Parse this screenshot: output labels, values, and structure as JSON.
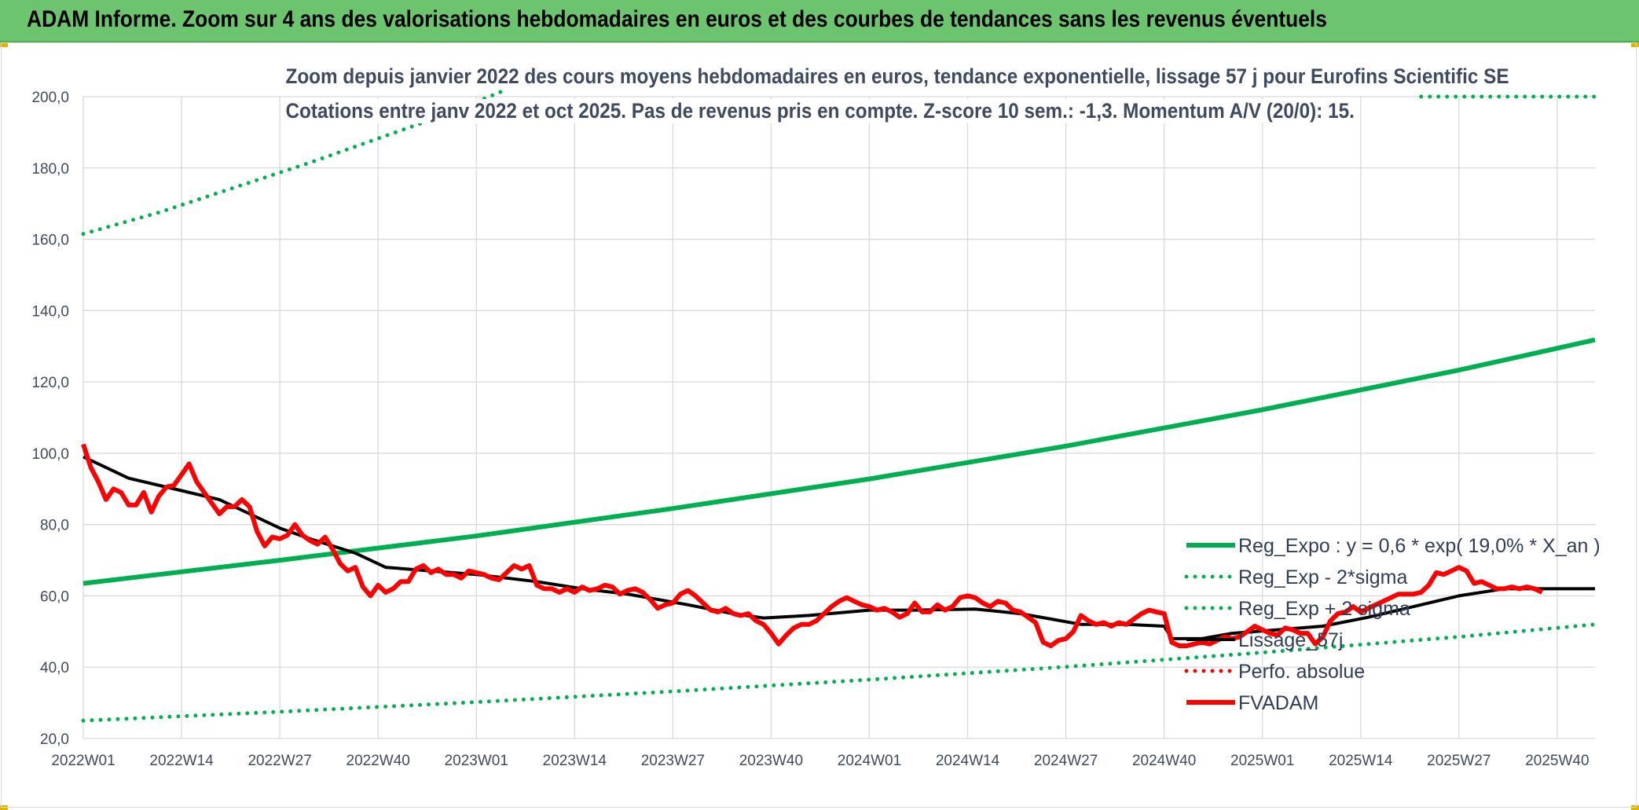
{
  "header": {
    "title": "ADAM Informe. Zoom sur 4 ans des valorisations hebdomadaires en euros et des courbes de tendances sans les revenus éventuels"
  },
  "chart_data": {
    "type": "line",
    "title": "Zoom depuis janvier 2022 des cours moyens hebdomadaires en euros, tendance exponentielle, lissage 57 j pour Eurofins Scientific SE",
    "subtitle": "Cotations entre janv 2022 et oct 2025. Pas de revenus pris en compte. Z-score 10 sem.: -1,3. Momentum A/V (20/0): 15.",
    "xlabel": "",
    "ylabel": "",
    "ylim": [
      20,
      200
    ],
    "ytick_step": 20,
    "yticks": [
      "20,0",
      "40,0",
      "60,0",
      "80,0",
      "100,0",
      "120,0",
      "140,0",
      "160,0",
      "180,0",
      "200,0"
    ],
    "xticks": [
      "2022W01",
      "2022W14",
      "2022W27",
      "2022W40",
      "2023W01",
      "2023W14",
      "2023W27",
      "2023W40",
      "2024W01",
      "2024W14",
      "2024W27",
      "2024W40",
      "2025W01",
      "2025W14",
      "2025W27",
      "2025W40"
    ],
    "xtick_spacing_weeks": 13,
    "n_weeks": 201,
    "grid": true,
    "legend_position": "bottom-right",
    "series": [
      {
        "name": "Reg_Expo : y = 0,6 * exp( 19,0% *  X_an )",
        "style": "solid",
        "color": "#00b050",
        "anchors": [
          [
            0,
            63.5
          ],
          [
            26,
            70
          ],
          [
            52,
            76.8
          ],
          [
            78,
            84.5
          ],
          [
            104,
            92.8
          ],
          [
            130,
            102
          ],
          [
            156,
            112.2
          ],
          [
            182,
            123.3
          ],
          [
            200,
            131.8
          ]
        ]
      },
      {
        "name": "Reg_Exp - 2*sigma",
        "style": "dotted",
        "color": "#00b050",
        "anchors": [
          [
            0,
            25
          ],
          [
            26,
            27.5
          ],
          [
            52,
            30.2
          ],
          [
            78,
            33.2
          ],
          [
            104,
            36.5
          ],
          [
            130,
            40.1
          ],
          [
            156,
            44.1
          ],
          [
            182,
            48.5
          ],
          [
            200,
            52
          ]
        ]
      },
      {
        "name": "Reg_Exp + 2 sigma",
        "style": "dotted",
        "color": "#00b050",
        "anchors": [
          [
            0,
            161.5
          ],
          [
            10,
            167.5
          ],
          [
            20,
            174.5
          ],
          [
            30,
            181.5
          ],
          [
            40,
            189
          ],
          [
            46,
            193.5
          ],
          [
            52,
            198.5
          ],
          [
            56,
            202
          ]
        ],
        "tail": {
          "from_week": 177,
          "to_week": 200,
          "value": 200
        }
      },
      {
        "name": "Lissage_57j",
        "style": "solid",
        "color": "#000000",
        "anchors": [
          [
            0,
            99
          ],
          [
            6,
            93
          ],
          [
            13,
            89.5
          ],
          [
            18,
            87
          ],
          [
            22,
            83
          ],
          [
            26,
            79
          ],
          [
            30,
            76
          ],
          [
            36,
            72
          ],
          [
            40,
            68
          ],
          [
            46,
            67
          ],
          [
            52,
            66
          ],
          [
            60,
            64
          ],
          [
            66,
            62
          ],
          [
            72,
            60.5
          ],
          [
            80,
            57.5
          ],
          [
            86,
            55
          ],
          [
            90,
            53.8
          ],
          [
            96,
            54.5
          ],
          [
            104,
            56
          ],
          [
            110,
            56
          ],
          [
            118,
            56.3
          ],
          [
            124,
            55
          ],
          [
            128,
            53.5
          ],
          [
            132,
            52
          ],
          [
            138,
            52
          ],
          [
            143,
            51.5
          ],
          [
            144,
            48
          ],
          [
            148,
            48
          ],
          [
            152,
            49.5
          ],
          [
            158,
            50.5
          ],
          [
            164,
            51.5
          ],
          [
            170,
            54
          ],
          [
            176,
            57
          ],
          [
            182,
            60
          ],
          [
            188,
            62
          ],
          [
            200,
            62
          ]
        ]
      },
      {
        "name": "Perfo. absolue",
        "style": "dotted",
        "color": "#ff0000",
        "anchors": []
      },
      {
        "name": "FVADAM",
        "style": "solid-thick",
        "color": "#ff0000",
        "anchors": [
          [
            0,
            102.5
          ],
          [
            1,
            96
          ],
          [
            2,
            92
          ],
          [
            3,
            87
          ],
          [
            4,
            90
          ],
          [
            5,
            89
          ],
          [
            6,
            85.5
          ],
          [
            7,
            85.5
          ],
          [
            8,
            89
          ],
          [
            9,
            83.5
          ],
          [
            10,
            88
          ],
          [
            11,
            90.5
          ],
          [
            12,
            91
          ],
          [
            13,
            94
          ],
          [
            14,
            97
          ],
          [
            15,
            92
          ],
          [
            16,
            89
          ],
          [
            17,
            86
          ],
          [
            18,
            83
          ],
          [
            19,
            85
          ],
          [
            20,
            85
          ],
          [
            21,
            87
          ],
          [
            22,
            85
          ],
          [
            23,
            78
          ],
          [
            24,
            74
          ],
          [
            25,
            76.5
          ],
          [
            26,
            76
          ],
          [
            27,
            77
          ],
          [
            28,
            80
          ],
          [
            29,
            77
          ],
          [
            30,
            75.5
          ],
          [
            31,
            74.5
          ],
          [
            32,
            76.5
          ],
          [
            33,
            73
          ],
          [
            34,
            69
          ],
          [
            35,
            67
          ],
          [
            36,
            68
          ],
          [
            37,
            62.5
          ],
          [
            38,
            60
          ],
          [
            39,
            63
          ],
          [
            40,
            61
          ],
          [
            41,
            62
          ],
          [
            42,
            64
          ],
          [
            43,
            64
          ],
          [
            44,
            67.5
          ],
          [
            45,
            68.5
          ],
          [
            46,
            66.5
          ],
          [
            47,
            67.5
          ],
          [
            48,
            66
          ],
          [
            49,
            66
          ],
          [
            50,
            65
          ],
          [
            51,
            67
          ],
          [
            52,
            66.5
          ],
          [
            53,
            66
          ],
          [
            54,
            65
          ],
          [
            55,
            64.5
          ],
          [
            56,
            66.5
          ],
          [
            57,
            68.5
          ],
          [
            58,
            67.5
          ],
          [
            59,
            68.5
          ],
          [
            60,
            63
          ],
          [
            61,
            62
          ],
          [
            62,
            62
          ],
          [
            63,
            61
          ],
          [
            64,
            62
          ],
          [
            65,
            61
          ],
          [
            66,
            62.5
          ],
          [
            67,
            61.5
          ],
          [
            68,
            62
          ],
          [
            69,
            63
          ],
          [
            70,
            62.5
          ],
          [
            71,
            60.5
          ],
          [
            72,
            61.5
          ],
          [
            73,
            62
          ],
          [
            74,
            61
          ],
          [
            75,
            59
          ],
          [
            76,
            56.5
          ],
          [
            77,
            57.5
          ],
          [
            78,
            58
          ],
          [
            79,
            60.5
          ],
          [
            80,
            61.5
          ],
          [
            81,
            60
          ],
          [
            82,
            58
          ],
          [
            83,
            56
          ],
          [
            84,
            55.5
          ],
          [
            85,
            56.5
          ],
          [
            86,
            55
          ],
          [
            87,
            54.5
          ],
          [
            88,
            55
          ],
          [
            89,
            53
          ],
          [
            90,
            52
          ],
          [
            91,
            49.5
          ],
          [
            92,
            46.5
          ],
          [
            93,
            49
          ],
          [
            94,
            51
          ],
          [
            95,
            52
          ],
          [
            96,
            52
          ],
          [
            97,
            53
          ],
          [
            98,
            55
          ],
          [
            99,
            57
          ],
          [
            100,
            58.5
          ],
          [
            101,
            59.5
          ],
          [
            102,
            58.5
          ],
          [
            103,
            57.5
          ],
          [
            104,
            57
          ],
          [
            105,
            56
          ],
          [
            106,
            56.5
          ],
          [
            107,
            55.5
          ],
          [
            108,
            54
          ],
          [
            109,
            55
          ],
          [
            110,
            58
          ],
          [
            111,
            55.5
          ],
          [
            112,
            55.5
          ],
          [
            113,
            57.5
          ],
          [
            114,
            56
          ],
          [
            115,
            57
          ],
          [
            116,
            59.5
          ],
          [
            117,
            60
          ],
          [
            118,
            59.5
          ],
          [
            119,
            58
          ],
          [
            120,
            57
          ],
          [
            121,
            58.5
          ],
          [
            122,
            58
          ],
          [
            123,
            56
          ],
          [
            124,
            55.5
          ],
          [
            125,
            54
          ],
          [
            126,
            52.5
          ],
          [
            127,
            47
          ],
          [
            128,
            46
          ],
          [
            129,
            47.5
          ],
          [
            130,
            48
          ],
          [
            131,
            50
          ],
          [
            132,
            54.5
          ],
          [
            133,
            53
          ],
          [
            134,
            52
          ],
          [
            135,
            52.5
          ],
          [
            136,
            51.5
          ],
          [
            137,
            52.5
          ],
          [
            138,
            52
          ],
          [
            139,
            53.5
          ],
          [
            140,
            55
          ],
          [
            141,
            56
          ],
          [
            142,
            55.5
          ],
          [
            143,
            55
          ],
          [
            144,
            47
          ],
          [
            145,
            46
          ],
          [
            146,
            46
          ],
          [
            147,
            46.5
          ],
          [
            148,
            47
          ],
          [
            149,
            46.5
          ],
          [
            150,
            47.5
          ],
          [
            151,
            48.5
          ],
          [
            152,
            48
          ],
          [
            153,
            48.5
          ],
          [
            154,
            50
          ],
          [
            155,
            51.5
          ],
          [
            156,
            50.5
          ],
          [
            157,
            49.5
          ],
          [
            158,
            49
          ],
          [
            159,
            51
          ],
          [
            160,
            50.5
          ],
          [
            161,
            49.5
          ],
          [
            162,
            49.5
          ],
          [
            163,
            46.5
          ],
          [
            164,
            48.5
          ],
          [
            165,
            53
          ],
          [
            166,
            55
          ],
          [
            167,
            55.5
          ],
          [
            168,
            57
          ],
          [
            169,
            55.5
          ],
          [
            170,
            56.5
          ],
          [
            171,
            57.5
          ],
          [
            172,
            58.5
          ],
          [
            173,
            59.5
          ],
          [
            174,
            60.5
          ],
          [
            175,
            60.5
          ],
          [
            176,
            60.5
          ],
          [
            177,
            61
          ],
          [
            178,
            63
          ],
          [
            179,
            66.5
          ],
          [
            180,
            66
          ],
          [
            181,
            67
          ],
          [
            182,
            68
          ],
          [
            183,
            67
          ],
          [
            184,
            63.5
          ],
          [
            185,
            64
          ],
          [
            186,
            63
          ],
          [
            187,
            62
          ],
          [
            188,
            62
          ],
          [
            189,
            62.5
          ],
          [
            190,
            62
          ],
          [
            191,
            62.5
          ],
          [
            192,
            62
          ],
          [
            193,
            61
          ]
        ]
      }
    ]
  }
}
